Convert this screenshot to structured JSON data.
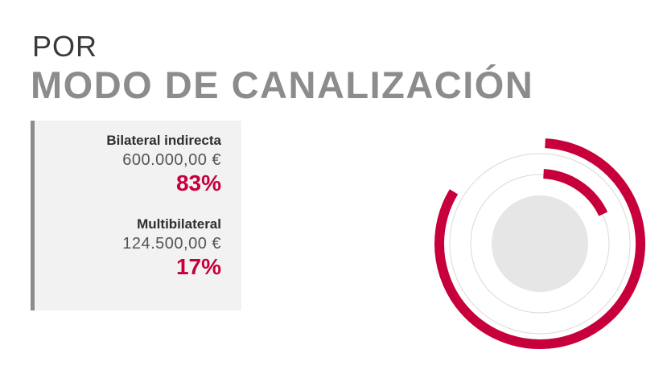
{
  "header": {
    "pre_title": "POR",
    "title": "MODO DE CANALIZACIÓN"
  },
  "legend_panel": {
    "entries": [
      {
        "label": "Bilateral indirecta",
        "amount": "600.000,00 €",
        "percent": "83%"
      },
      {
        "label": "Multibilateral",
        "amount": "124.500,00 €",
        "percent": "17%"
      }
    ]
  },
  "colors": {
    "accent": "#c7003c",
    "guide_ring": "#d9d9d9",
    "center": "#e6e6e6",
    "panel_bg": "#f2f2f2",
    "panel_border": "#8c8c8c"
  },
  "chart_data": {
    "type": "pie",
    "title": "",
    "categories": [
      "Bilateral indirecta",
      "Multibilateral"
    ],
    "values": [
      600000.0,
      124500.0
    ],
    "percentages": [
      83,
      17
    ],
    "style": "concentric radial arcs"
  }
}
